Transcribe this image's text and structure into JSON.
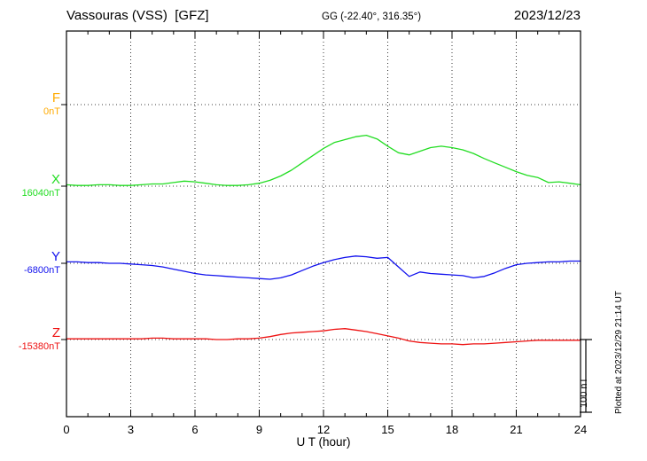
{
  "chart_data": {
    "type": "line",
    "title": "Vassouras (VSS)  [GFZ]",
    "subtitle": "GG (-22.40°, 316.35°)",
    "date": "2023/12/23",
    "xlabel": "U T (hour)",
    "x_range": [
      0,
      24
    ],
    "x_ticks": [
      0,
      3,
      6,
      9,
      12,
      15,
      18,
      21,
      24
    ],
    "x_step_hours": 0.5,
    "grid": "dotted baselines and 3-hour verticals",
    "scale_bar": {
      "label": "100 nT",
      "nT": 100
    },
    "plotted_at": "Plotted at 2023/12/29 21:14 UT",
    "series": [
      {
        "name": "F",
        "color": "#ffaa00",
        "baseline_label": "0nT",
        "baseline_nT": 0,
        "offsets_nT": [
          0,
          0,
          0,
          0,
          0,
          0,
          0,
          0,
          0,
          0,
          0,
          0,
          0,
          0,
          0,
          0,
          0,
          0,
          0,
          0,
          0,
          0,
          0,
          0,
          0,
          0,
          0,
          0,
          0,
          0,
          0,
          0,
          0,
          0,
          0,
          0,
          0,
          0,
          0,
          0,
          0,
          0,
          0,
          0,
          0,
          0,
          0,
          0,
          0
        ]
      },
      {
        "name": "X",
        "color": "#22dd22",
        "baseline_label": "16040nT",
        "baseline_nT": 16040,
        "offsets_nT": [
          2,
          1,
          1,
          2,
          2,
          1,
          1,
          2,
          3,
          3,
          5,
          7,
          6,
          4,
          2,
          1,
          1,
          2,
          4,
          8,
          14,
          22,
          32,
          42,
          52,
          60,
          64,
          68,
          70,
          65,
          55,
          46,
          43,
          48,
          53,
          55,
          53,
          50,
          45,
          38,
          32,
          26,
          20,
          15,
          12,
          5,
          6,
          4,
          2
        ]
      },
      {
        "name": "Y",
        "color": "#1111ee",
        "baseline_label": "-6800nT",
        "baseline_nT": -6800,
        "offsets_nT": [
          2,
          2,
          1,
          1,
          0,
          0,
          -1,
          -2,
          -3,
          -5,
          -8,
          -11,
          -14,
          -16,
          -17,
          -18,
          -19,
          -20,
          -21,
          -22,
          -20,
          -16,
          -10,
          -4,
          1,
          5,
          8,
          10,
          9,
          7,
          8,
          -5,
          -18,
          -12,
          -14,
          -15,
          -16,
          -17,
          -20,
          -18,
          -13,
          -7,
          -2,
          0,
          1,
          2,
          2,
          3,
          3
        ]
      },
      {
        "name": "Z",
        "color": "#ee1111",
        "baseline_label": "-15380nT",
        "baseline_nT": -15380,
        "offsets_nT": [
          1,
          1,
          1,
          1,
          1,
          1,
          1,
          1,
          2,
          2,
          1,
          1,
          1,
          1,
          0,
          0,
          1,
          1,
          2,
          4,
          7,
          9,
          10,
          11,
          12,
          14,
          15,
          13,
          11,
          8,
          5,
          2,
          -2,
          -4,
          -5,
          -6,
          -6,
          -7,
          -6,
          -6,
          -5,
          -4,
          -3,
          -2,
          -1,
          -1,
          -1,
          -1,
          -1
        ]
      }
    ]
  }
}
